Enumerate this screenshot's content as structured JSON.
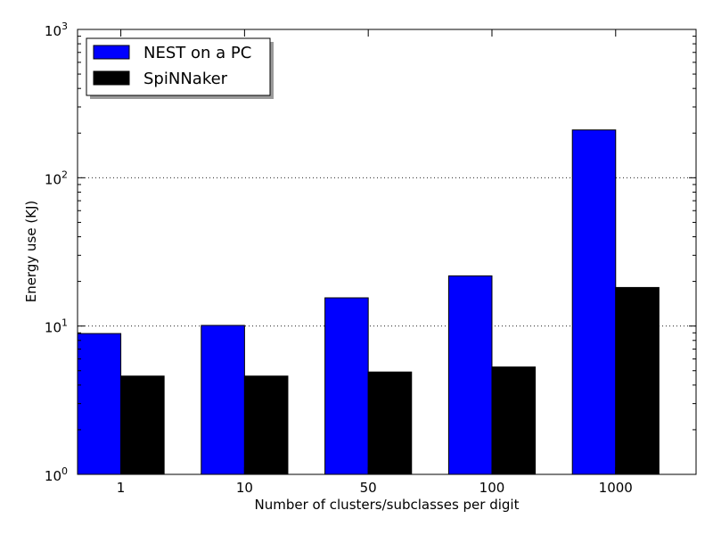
{
  "chart_data": {
    "type": "bar",
    "title": "",
    "xlabel": "Number of clusters/subclasses per digit",
    "ylabel": "Energy use (KJ)",
    "yscale": "log",
    "ylim": [
      1,
      1000
    ],
    "yticks": [
      {
        "value": 1,
        "base": "10",
        "exp": "0"
      },
      {
        "value": 10,
        "base": "10",
        "exp": "1"
      },
      {
        "value": 100,
        "base": "10",
        "exp": "2"
      },
      {
        "value": 1000,
        "base": "10",
        "exp": "3"
      }
    ],
    "categories": [
      "1",
      "10",
      "50",
      "100",
      "1000"
    ],
    "series": [
      {
        "name": "NEST on a PC",
        "color": "#0000ff",
        "values": [
          8.9,
          10.1,
          15.5,
          21.8,
          210
        ]
      },
      {
        "name": "SpiNNaker",
        "color": "#000000",
        "values": [
          4.6,
          4.6,
          4.9,
          5.3,
          18.2
        ]
      }
    ],
    "grid": "y-major dotted",
    "legend": "top-left"
  }
}
